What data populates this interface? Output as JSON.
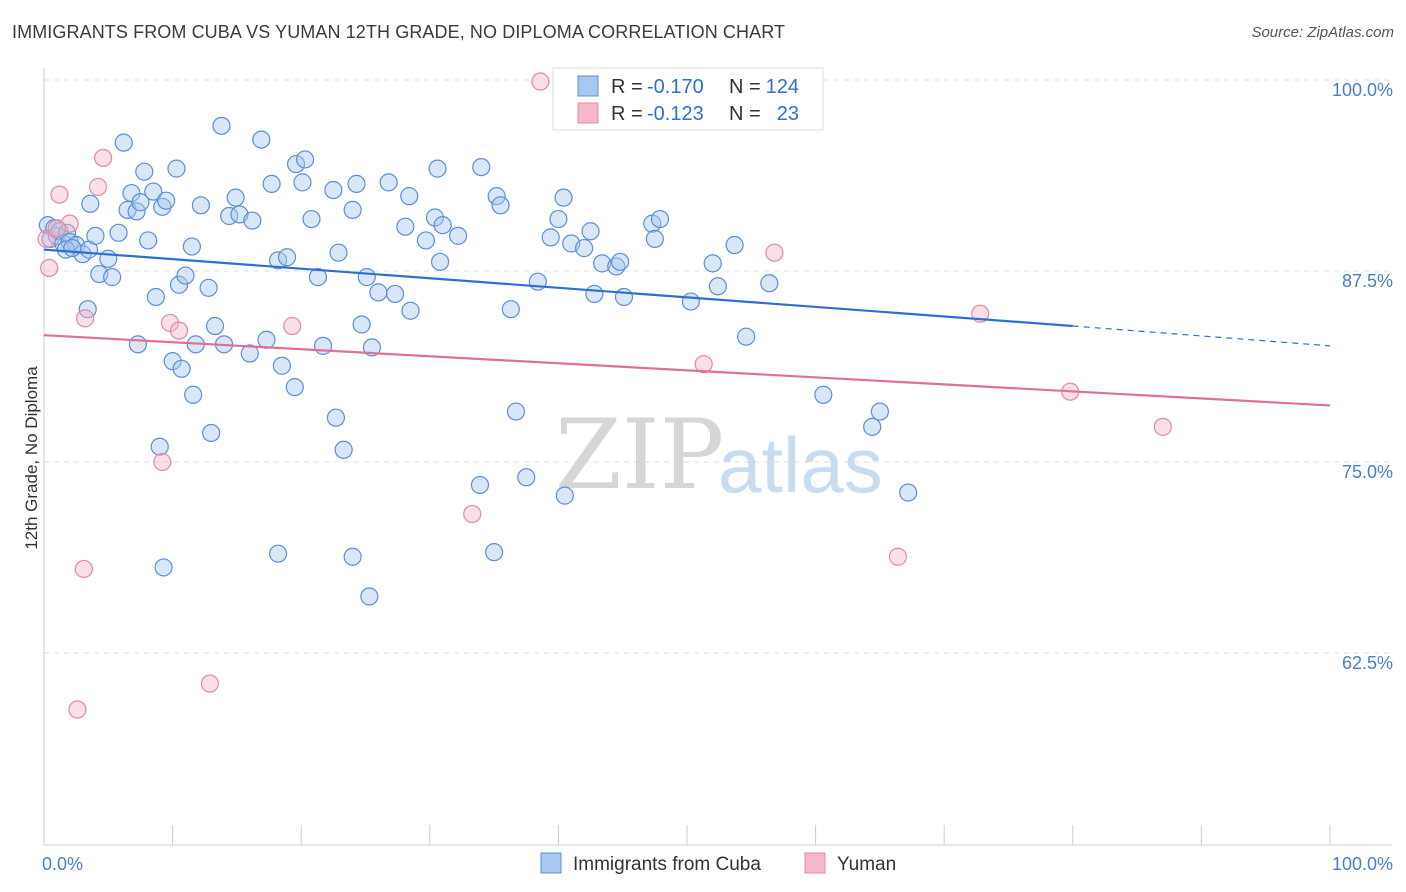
{
  "header": {
    "title": "IMMIGRANTS FROM CUBA VS YUMAN 12TH GRADE, NO DIPLOMA CORRELATION CHART",
    "source": "Source: ZipAtlas.com"
  },
  "watermark": {
    "zip": "ZIP",
    "atlas": "atlas"
  },
  "colors": {
    "blue_fill": "#a9c8ef",
    "blue_stroke": "#5b8fd6",
    "blue_line": "#2f6fd0",
    "pink_fill": "#f5b8cb",
    "pink_stroke": "#e28aa6",
    "pink_line": "#e0709a",
    "grid": "#dddddd",
    "axis_text": "#4a7fc8"
  },
  "legend": {
    "rows": [
      {
        "r_label": "R =",
        "r_value": "-0.170",
        "n_label": "N =",
        "n_value": "124"
      },
      {
        "r_label": "R =",
        "r_value": "-0.123",
        "n_label": "N =",
        "n_value": "23"
      }
    ]
  },
  "chart_data": {
    "type": "scatter",
    "ylabel": "12th Grade, No Diploma",
    "xlim": [
      0,
      100
    ],
    "ylim": [
      52,
      102
    ],
    "x_tick_labels": [
      "0.0%",
      "100.0%"
    ],
    "y_ticks": [
      {
        "value": 100,
        "label": "100.0%"
      },
      {
        "value": 87.5,
        "label": "87.5%"
      },
      {
        "value": 75,
        "label": "75.0%"
      },
      {
        "value": 62.5,
        "label": "62.5%"
      }
    ],
    "grid": true,
    "series": [
      {
        "name": "Immigrants from Cuba",
        "trend": {
          "x0": 0,
          "y0": 88.9,
          "x1": 80,
          "y1": 83.9,
          "x_ext": 100,
          "y_ext": 82.6
        },
        "points": [
          [
            0.3,
            90.5
          ],
          [
            0.5,
            89.6
          ],
          [
            0.8,
            90.3
          ],
          [
            1.0,
            89.8
          ],
          [
            1.2,
            90.1
          ],
          [
            1.5,
            89.3
          ],
          [
            1.8,
            90.0
          ],
          [
            2.0,
            89.4
          ],
          [
            2.5,
            89.2
          ],
          [
            3.0,
            88.6
          ],
          [
            3.5,
            88.9
          ],
          [
            4.0,
            89.8
          ],
          [
            1.7,
            88.9
          ],
          [
            2.2,
            89.0
          ],
          [
            4.3,
            87.3
          ],
          [
            5.0,
            88.3
          ],
          [
            5.3,
            87.1
          ],
          [
            5.8,
            90.0
          ],
          [
            3.4,
            85.0
          ],
          [
            6.2,
            95.9
          ],
          [
            6.5,
            91.5
          ],
          [
            6.8,
            92.6
          ],
          [
            7.2,
            91.4
          ],
          [
            7.5,
            92.0
          ],
          [
            7.8,
            94.0
          ],
          [
            8.1,
            89.5
          ],
          [
            8.5,
            92.7
          ],
          [
            8.7,
            85.8
          ],
          [
            9.2,
            91.7
          ],
          [
            9.5,
            92.1
          ],
          [
            10.3,
            94.2
          ],
          [
            10.5,
            86.6
          ],
          [
            11.0,
            87.2
          ],
          [
            11.5,
            89.1
          ],
          [
            12.2,
            91.8
          ],
          [
            12.8,
            86.4
          ],
          [
            13.3,
            83.9
          ],
          [
            13.8,
            97.0
          ],
          [
            14.4,
            91.1
          ],
          [
            14.9,
            92.3
          ],
          [
            15.2,
            91.2
          ],
          [
            16.2,
            90.8
          ],
          [
            16.9,
            96.1
          ],
          [
            17.7,
            93.2
          ],
          [
            18.2,
            88.2
          ],
          [
            18.9,
            88.4
          ],
          [
            19.6,
            94.5
          ],
          [
            20.3,
            94.8
          ],
          [
            20.1,
            93.3
          ],
          [
            20.8,
            90.9
          ],
          [
            21.3,
            87.1
          ],
          [
            22.5,
            92.8
          ],
          [
            22.9,
            88.7
          ],
          [
            24.0,
            91.5
          ],
          [
            24.3,
            93.2
          ],
          [
            24.7,
            84.0
          ],
          [
            25.1,
            87.1
          ],
          [
            25.5,
            82.5
          ],
          [
            26.0,
            86.1
          ],
          [
            26.8,
            93.3
          ],
          [
            27.3,
            86.0
          ],
          [
            28.1,
            90.4
          ],
          [
            28.5,
            84.9
          ],
          [
            29.7,
            89.5
          ],
          [
            30.4,
            91.0
          ],
          [
            31.0,
            90.5
          ],
          [
            30.6,
            94.2
          ],
          [
            30.8,
            88.1
          ],
          [
            32.2,
            89.8
          ],
          [
            34.0,
            94.3
          ],
          [
            35.2,
            92.4
          ],
          [
            35.5,
            91.8
          ],
          [
            36.3,
            85.0
          ],
          [
            36.7,
            78.3
          ],
          [
            37.5,
            74.0
          ],
          [
            38.4,
            86.8
          ],
          [
            39.4,
            89.7
          ],
          [
            40.0,
            90.9
          ],
          [
            40.4,
            92.3
          ],
          [
            40.5,
            72.8
          ],
          [
            41.0,
            89.3
          ],
          [
            42.0,
            89.0
          ],
          [
            42.5,
            90.1
          ],
          [
            42.8,
            86.0
          ],
          [
            43.4,
            88.0
          ],
          [
            44.5,
            87.8
          ],
          [
            44.8,
            88.1
          ],
          [
            45.1,
            85.8
          ],
          [
            47.3,
            90.6
          ],
          [
            47.5,
            89.6
          ],
          [
            47.9,
            90.9
          ],
          [
            50.3,
            85.5
          ],
          [
            52.0,
            88.0
          ],
          [
            52.4,
            86.5
          ],
          [
            53.7,
            89.2
          ],
          [
            54.6,
            83.2
          ],
          [
            56.4,
            86.7
          ],
          [
            60.6,
            79.4
          ],
          [
            64.4,
            77.3
          ],
          [
            65.0,
            78.3
          ],
          [
            67.2,
            73.0
          ],
          [
            9.0,
            76.0
          ],
          [
            9.3,
            68.1
          ],
          [
            10.0,
            81.6
          ],
          [
            10.7,
            81.1
          ],
          [
            11.6,
            79.4
          ],
          [
            11.8,
            82.7
          ],
          [
            13.0,
            76.9
          ],
          [
            14.0,
            82.7
          ],
          [
            16.0,
            82.1
          ],
          [
            17.3,
            83.0
          ],
          [
            18.5,
            81.3
          ],
          [
            19.5,
            79.9
          ],
          [
            21.7,
            82.6
          ],
          [
            22.7,
            77.9
          ],
          [
            23.3,
            75.8
          ],
          [
            24.0,
            68.8
          ],
          [
            25.3,
            66.2
          ],
          [
            28.4,
            92.4
          ],
          [
            33.9,
            73.5
          ],
          [
            35.0,
            69.1
          ],
          [
            3.6,
            91.9
          ],
          [
            7.3,
            82.7
          ],
          [
            18.2,
            69.0
          ]
        ]
      },
      {
        "name": "Yuman",
        "trend": {
          "x0": 0,
          "y0": 83.3,
          "x1": 100,
          "y1": 78.7
        },
        "points": [
          [
            0.2,
            89.6
          ],
          [
            0.4,
            87.7
          ],
          [
            1.2,
            92.5
          ],
          [
            2.0,
            90.6
          ],
          [
            3.2,
            84.4
          ],
          [
            4.2,
            93.0
          ],
          [
            4.6,
            94.9
          ],
          [
            9.2,
            75.0
          ],
          [
            9.8,
            84.1
          ],
          [
            10.5,
            83.6
          ],
          [
            12.9,
            60.5
          ],
          [
            19.3,
            83.9
          ],
          [
            33.3,
            71.6
          ],
          [
            38.6,
            99.9
          ],
          [
            51.3,
            81.4
          ],
          [
            56.8,
            88.7
          ],
          [
            66.4,
            68.8
          ],
          [
            72.8,
            84.7
          ],
          [
            79.8,
            79.6
          ],
          [
            87.0,
            77.3
          ],
          [
            2.6,
            58.8
          ],
          [
            3.1,
            68.0
          ],
          [
            1.0,
            90.3
          ]
        ]
      }
    ]
  }
}
